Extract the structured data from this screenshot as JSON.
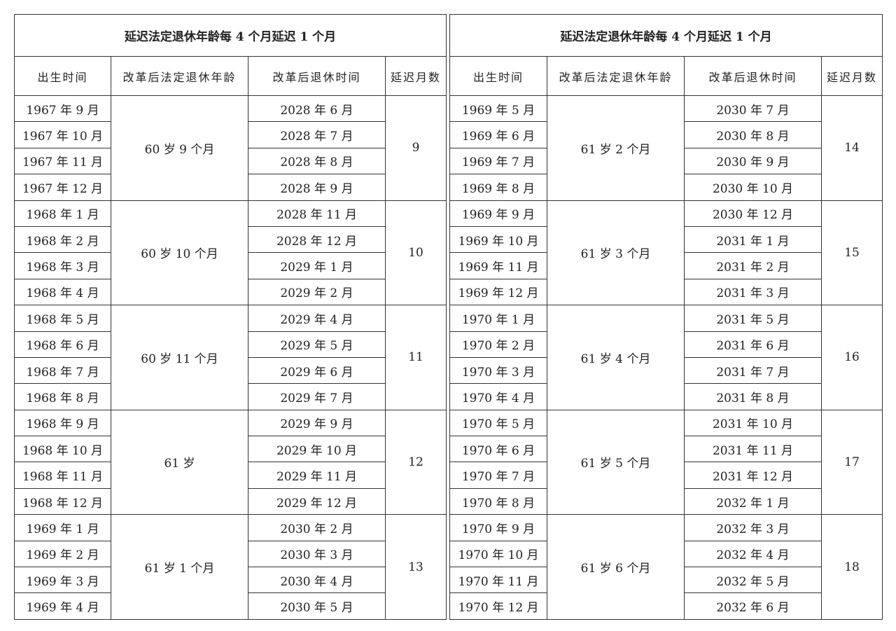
{
  "tables": [
    {
      "title": "延迟法定退休年龄每 4 个月延迟 1 个月",
      "headers": [
        "出生时间",
        "改革后法定退休年龄",
        "改革后退休时间",
        "延迟月数"
      ],
      "groups": [
        {
          "age": "60 岁 9 个月",
          "delay": "9",
          "rows": [
            [
              "1967 年 9 月",
              "2028 年 6 月"
            ],
            [
              "1967 年 10 月",
              "2028 年 7 月"
            ],
            [
              "1967 年 11 月",
              "2028 年 8 月"
            ],
            [
              "1967 年 12 月",
              "2028 年 9 月"
            ]
          ]
        },
        {
          "age": "60 岁 10 个月",
          "delay": "10",
          "rows": [
            [
              "1968 年 1 月",
              "2028 年 11 月"
            ],
            [
              "1968 年 2 月",
              "2028 年 12 月"
            ],
            [
              "1968 年 3 月",
              "2029 年 1 月"
            ],
            [
              "1968 年 4 月",
              "2029 年 2 月"
            ]
          ]
        },
        {
          "age": "60 岁 11 个月",
          "delay": "11",
          "rows": [
            [
              "1968 年 5 月",
              "2029 年 4 月"
            ],
            [
              "1968 年 6 月",
              "2029 年 5 月"
            ],
            [
              "1968 年 7 月",
              "2029 年 6 月"
            ],
            [
              "1968 年 8 月",
              "2029 年 7 月"
            ]
          ]
        },
        {
          "age": "61 岁",
          "delay": "12",
          "rows": [
            [
              "1968 年 9 月",
              "2029 年 9 月"
            ],
            [
              "1968 年 10 月",
              "2029 年 10 月"
            ],
            [
              "1968 年 11 月",
              "2029 年 11 月"
            ],
            [
              "1968 年 12 月",
              "2029 年 12 月"
            ]
          ]
        },
        {
          "age": "61 岁 1 个月",
          "delay": "13",
          "rows": [
            [
              "1969 年 1 月",
              "2030 年 2 月"
            ],
            [
              "1969 年 2 月",
              "2030 年 3 月"
            ],
            [
              "1969 年 3 月",
              "2030 年 4 月"
            ],
            [
              "1969 年 4 月",
              "2030 年 5 月"
            ]
          ]
        }
      ]
    },
    {
      "title": "延迟法定退休年龄每 4 个月延迟 1 个月",
      "headers": [
        "出生时间",
        "改革后法定退休年龄",
        "改革后退休时间",
        "延迟月数"
      ],
      "groups": [
        {
          "age": "61 岁 2 个月",
          "delay": "14",
          "rows": [
            [
              "1969 年 5 月",
              "2030 年 7 月"
            ],
            [
              "1969 年 6 月",
              "2030 年 8 月"
            ],
            [
              "1969 年 7 月",
              "2030 年 9 月"
            ],
            [
              "1969 年 8 月",
              "2030 年 10 月"
            ]
          ]
        },
        {
          "age": "61 岁 3 个月",
          "delay": "15",
          "rows": [
            [
              "1969 年 9 月",
              "2030 年 12 月"
            ],
            [
              "1969 年 10 月",
              "2031 年 1 月"
            ],
            [
              "1969 年 11 月",
              "2031 年 2 月"
            ],
            [
              "1969 年 12 月",
              "2031 年 3 月"
            ]
          ]
        },
        {
          "age": "61 岁 4 个月",
          "delay": "16",
          "rows": [
            [
              "1970 年 1 月",
              "2031 年 5 月"
            ],
            [
              "1970 年 2 月",
              "2031 年 6 月"
            ],
            [
              "1970 年 3 月",
              "2031 年 7 月"
            ],
            [
              "1970 年 4 月",
              "2031 年 8 月"
            ]
          ]
        },
        {
          "age": "61 岁 5 个月",
          "delay": "17",
          "rows": [
            [
              "1970 年 5 月",
              "2031 年 10 月"
            ],
            [
              "1970 年 6 月",
              "2031 年 11 月"
            ],
            [
              "1970 年 7 月",
              "2031 年 12 月"
            ],
            [
              "1970 年 8 月",
              "2032 年 1 月"
            ]
          ]
        },
        {
          "age": "61 岁 6 个月",
          "delay": "18",
          "rows": [
            [
              "1970 年 9 月",
              "2032 年 3 月"
            ],
            [
              "1970 年 10 月",
              "2032 年 4 月"
            ],
            [
              "1970 年 11 月",
              "2032 年 5 月"
            ],
            [
              "1970 年 12 月",
              "2032 年 6 月"
            ]
          ]
        }
      ]
    }
  ]
}
